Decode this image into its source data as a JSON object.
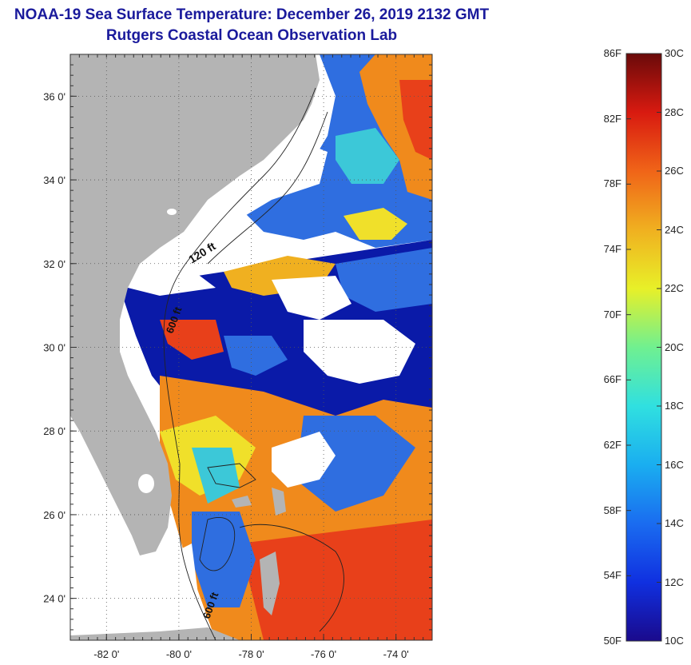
{
  "header": {
    "title": "NOAA-19 Sea Surface Temperature:  December 26, 2019 2132 GMT",
    "subtitle": "Rutgers Coastal Ocean Observation Lab"
  },
  "map": {
    "lon_range": [
      -83,
      -73
    ],
    "lat_range": [
      23,
      37
    ],
    "lon_ticks": [
      {
        "value": -82,
        "label": "-82 0'"
      },
      {
        "value": -80,
        "label": "-80 0'"
      },
      {
        "value": -78,
        "label": "-78 0'"
      },
      {
        "value": -76,
        "label": "-76 0'"
      },
      {
        "value": -74,
        "label": "-74 0'"
      }
    ],
    "lat_ticks": [
      {
        "value": 24,
        "label": "24 0'"
      },
      {
        "value": 26,
        "label": "26 0'"
      },
      {
        "value": 28,
        "label": "28 0'"
      },
      {
        "value": 30,
        "label": "30 0'"
      },
      {
        "value": 32,
        "label": "32 0'"
      },
      {
        "value": 34,
        "label": "34 0'"
      },
      {
        "value": 36,
        "label": "36 0'"
      }
    ],
    "contour_labels": {
      "shelf": "120 ft",
      "slope": "600 ft",
      "deep": "600 ft"
    },
    "colors": {
      "land": "#b4b4b4",
      "cloud": "#ffffff",
      "cold": "#0a1aa8",
      "cool": "#2f6ee0",
      "mid": "#3cc8d8",
      "mild": "#f0e02a",
      "warm": "#f08a1c",
      "hot": "#e8401a"
    }
  },
  "colorbar": {
    "fahrenheit": [
      "86F",
      "82F",
      "78F",
      "74F",
      "70F",
      "66F",
      "62F",
      "58F",
      "54F",
      "50F"
    ],
    "celsius": [
      "30C",
      "28C",
      "26C",
      "24C",
      "22C",
      "20C",
      "18C",
      "16C",
      "14C",
      "12C",
      "10C"
    ],
    "range_c": [
      10,
      30
    ]
  }
}
